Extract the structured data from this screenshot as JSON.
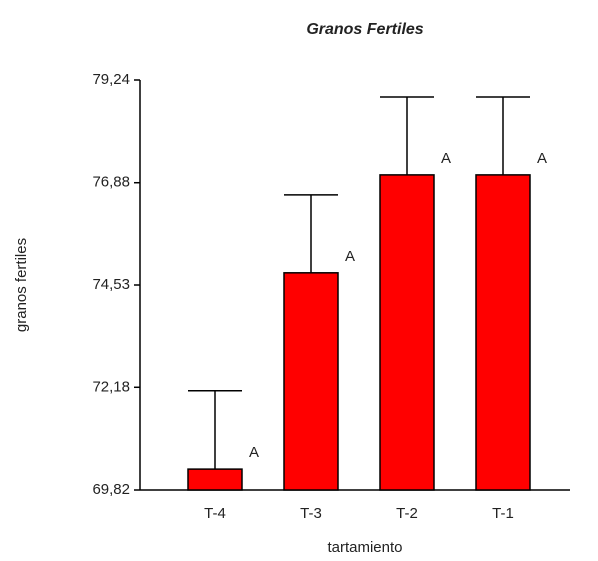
{
  "chart_data": {
    "type": "bar",
    "title": "Granos Fertiles",
    "x_label": "tartamiento",
    "y_label": "granos fertiles",
    "categories": [
      "T-4",
      "T-3",
      "T-2",
      "T-1"
    ],
    "values": [
      70.3,
      74.81,
      77.06,
      77.06
    ],
    "errors": [
      1.8,
      1.79,
      1.79,
      1.79
    ],
    "annotations": [
      "A",
      "A",
      "A",
      "A"
    ],
    "color": "#ff0000",
    "ylim": [
      69.82,
      79.24
    ],
    "yticks": [
      {
        "value": 69.82,
        "label": "69,82"
      },
      {
        "value": 72.18,
        "label": "72,18"
      },
      {
        "value": 74.53,
        "label": "74,53"
      },
      {
        "value": 76.88,
        "label": "76,88"
      },
      {
        "value": 79.24,
        "label": "79,24"
      }
    ],
    "grid": false
  }
}
